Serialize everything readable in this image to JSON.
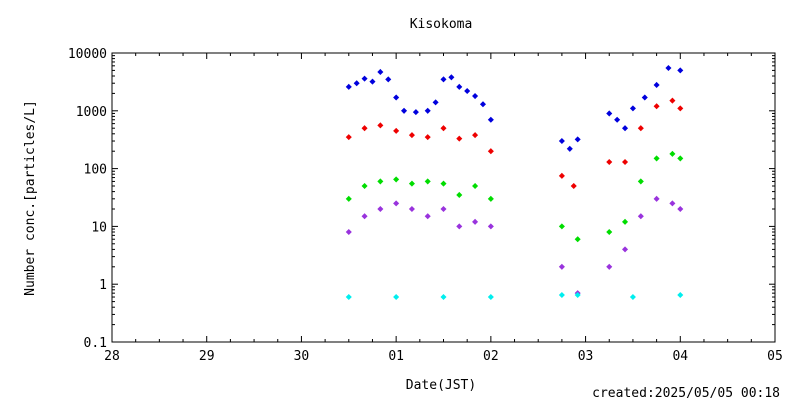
{
  "page": {
    "background": "#ffffff"
  },
  "chart_data": {
    "type": "scatter",
    "title": "Kisokoma",
    "xlabel": "Date(JST)",
    "ylabel": "Number conc.[particles/L]",
    "footer": "created:2025/05/05 00:18",
    "x_scale": "date",
    "y_scale": "log",
    "xlim": [
      "2025-04-28",
      "2025-05-05"
    ],
    "ylim": [
      0.1,
      10000
    ],
    "x_tick_labels": [
      "28",
      "29",
      "30",
      "01",
      "02",
      "03",
      "04",
      "05"
    ],
    "y_tick_labels": [
      "0.1",
      "1",
      "10",
      "100",
      "1000",
      "10000"
    ],
    "y_ticks": [
      0.1,
      1,
      10,
      100,
      1000,
      10000
    ],
    "grid": false,
    "legend": "none",
    "marker": "diamond",
    "series": [
      {
        "color": "#0000dd",
        "points": [
          [
            "2025-04-30 12:00",
            2600
          ],
          [
            "2025-04-30 14:00",
            3000
          ],
          [
            "2025-04-30 16:00",
            3600
          ],
          [
            "2025-04-30 18:00",
            3200
          ],
          [
            "2025-04-30 20:00",
            4700
          ],
          [
            "2025-04-30 22:00",
            3500
          ],
          [
            "2025-05-01 00:00",
            1700
          ],
          [
            "2025-05-01 02:00",
            1000
          ],
          [
            "2025-05-01 05:00",
            950
          ],
          [
            "2025-05-01 08:00",
            1000
          ],
          [
            "2025-05-01 10:00",
            1400
          ],
          [
            "2025-05-01 12:00",
            3500
          ],
          [
            "2025-05-01 14:00",
            3800
          ],
          [
            "2025-05-01 16:00",
            2600
          ],
          [
            "2025-05-01 18:00",
            2200
          ],
          [
            "2025-05-01 20:00",
            1800
          ],
          [
            "2025-05-01 22:00",
            1300
          ],
          [
            "2025-05-02 00:00",
            700
          ],
          [
            "2025-05-02 18:00",
            300
          ],
          [
            "2025-05-02 20:00",
            220
          ],
          [
            "2025-05-02 22:00",
            320
          ],
          [
            "2025-05-03 06:00",
            900
          ],
          [
            "2025-05-03 08:00",
            700
          ],
          [
            "2025-05-03 10:00",
            500
          ],
          [
            "2025-05-03 12:00",
            1100
          ],
          [
            "2025-05-03 15:00",
            1700
          ],
          [
            "2025-05-03 18:00",
            2800
          ],
          [
            "2025-05-03 21:00",
            5500
          ],
          [
            "2025-05-04 00:00",
            5000
          ]
        ]
      },
      {
        "color": "#ee0000",
        "points": [
          [
            "2025-04-30 12:00",
            350
          ],
          [
            "2025-04-30 16:00",
            500
          ],
          [
            "2025-04-30 20:00",
            560
          ],
          [
            "2025-05-01 00:00",
            450
          ],
          [
            "2025-05-01 04:00",
            380
          ],
          [
            "2025-05-01 08:00",
            350
          ],
          [
            "2025-05-01 12:00",
            500
          ],
          [
            "2025-05-01 16:00",
            330
          ],
          [
            "2025-05-01 20:00",
            380
          ],
          [
            "2025-05-02 00:00",
            200
          ],
          [
            "2025-05-02 18:00",
            75
          ],
          [
            "2025-05-02 21:00",
            50
          ],
          [
            "2025-05-03 06:00",
            130
          ],
          [
            "2025-05-03 10:00",
            130
          ],
          [
            "2025-05-03 14:00",
            500
          ],
          [
            "2025-05-03 18:00",
            1200
          ],
          [
            "2025-05-03 22:00",
            1500
          ],
          [
            "2025-05-04 00:00",
            1100
          ]
        ]
      },
      {
        "color": "#00dd00",
        "points": [
          [
            "2025-04-30 12:00",
            30
          ],
          [
            "2025-04-30 16:00",
            50
          ],
          [
            "2025-04-30 20:00",
            60
          ],
          [
            "2025-05-01 00:00",
            65
          ],
          [
            "2025-05-01 04:00",
            55
          ],
          [
            "2025-05-01 08:00",
            60
          ],
          [
            "2025-05-01 12:00",
            55
          ],
          [
            "2025-05-01 16:00",
            35
          ],
          [
            "2025-05-01 20:00",
            50
          ],
          [
            "2025-05-02 00:00",
            30
          ],
          [
            "2025-05-02 18:00",
            10
          ],
          [
            "2025-05-02 22:00",
            6
          ],
          [
            "2025-05-03 06:00",
            8
          ],
          [
            "2025-05-03 10:00",
            12
          ],
          [
            "2025-05-03 14:00",
            60
          ],
          [
            "2025-05-03 18:00",
            150
          ],
          [
            "2025-05-03 22:00",
            180
          ],
          [
            "2025-05-04 00:00",
            150
          ]
        ]
      },
      {
        "color": "#9933dd",
        "points": [
          [
            "2025-04-30 12:00",
            8
          ],
          [
            "2025-04-30 16:00",
            15
          ],
          [
            "2025-04-30 20:00",
            20
          ],
          [
            "2025-05-01 00:00",
            25
          ],
          [
            "2025-05-01 04:00",
            20
          ],
          [
            "2025-05-01 08:00",
            15
          ],
          [
            "2025-05-01 12:00",
            20
          ],
          [
            "2025-05-01 16:00",
            10
          ],
          [
            "2025-05-01 20:00",
            12
          ],
          [
            "2025-05-02 00:00",
            10
          ],
          [
            "2025-05-02 18:00",
            2
          ],
          [
            "2025-05-02 22:00",
            0.7
          ],
          [
            "2025-05-03 06:00",
            2
          ],
          [
            "2025-05-03 10:00",
            4
          ],
          [
            "2025-05-03 14:00",
            15
          ],
          [
            "2025-05-03 18:00",
            30
          ],
          [
            "2025-05-03 22:00",
            25
          ],
          [
            "2025-05-04 00:00",
            20
          ]
        ]
      },
      {
        "color": "#00eeee",
        "points": [
          [
            "2025-04-30 12:00",
            0.6
          ],
          [
            "2025-05-01 00:00",
            0.6
          ],
          [
            "2025-05-01 12:00",
            0.6
          ],
          [
            "2025-05-02 00:00",
            0.6
          ],
          [
            "2025-05-02 18:00",
            0.65
          ],
          [
            "2025-05-02 22:00",
            0.65
          ],
          [
            "2025-05-03 12:00",
            0.6
          ],
          [
            "2025-05-04 00:00",
            0.65
          ]
        ]
      }
    ]
  }
}
